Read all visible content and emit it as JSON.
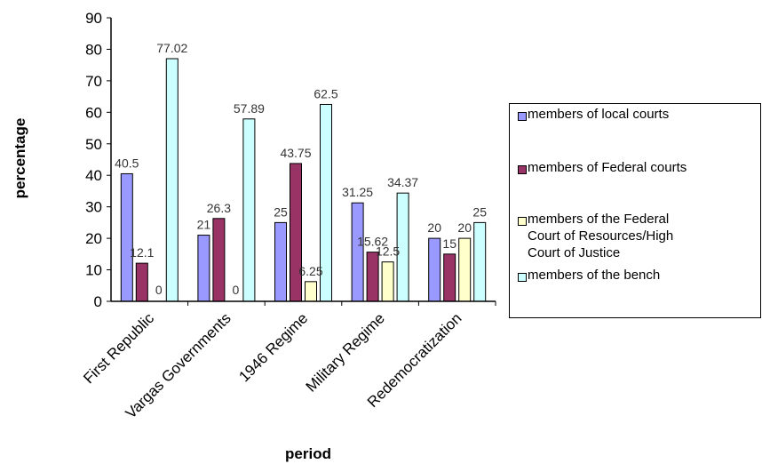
{
  "chart_data": {
    "type": "bar",
    "categories": [
      "First Republic",
      "Vargas Governments",
      "1946 Regime",
      "Military Regime",
      "Redemocratization"
    ],
    "series": [
      {
        "name": "members of local courts",
        "color": "#9999FF",
        "values": [
          40.5,
          21,
          25,
          31.25,
          20
        ],
        "labels": [
          "40.5",
          "21",
          "25",
          "31.25",
          "20"
        ]
      },
      {
        "name": "members of Federal courts",
        "color": "#993366",
        "values": [
          12.1,
          26.3,
          43.75,
          15.62,
          15
        ],
        "labels": [
          "12.1",
          "26.3",
          "43.75",
          "15.62",
          "15"
        ]
      },
      {
        "name": "members of the Federal Court of Resources/High Court of Justice",
        "color": "#FFFFCC",
        "values": [
          0,
          0,
          6.25,
          12.5,
          20
        ],
        "labels": [
          "",
          "",
          "6.25",
          "12.5",
          "20"
        ]
      },
      {
        "name": "members of the bench",
        "color": "#CCFFFF",
        "values": [
          77.02,
          57.89,
          62.5,
          34.37,
          25
        ],
        "labels": [
          "77.02",
          "57.89",
          "62.5",
          "34.37",
          "25"
        ]
      }
    ],
    "extra_labels": [
      {
        "category_index": 0,
        "series_index": 2,
        "text": "0"
      },
      {
        "category_index": 1,
        "series_index": 2,
        "text": "0"
      }
    ],
    "xlabel": "period",
    "ylabel": "percentage",
    "ylim": [
      0,
      90
    ],
    "yticks": [
      0,
      10,
      20,
      30,
      40,
      50,
      60,
      70,
      80,
      90
    ],
    "grid": false,
    "legend_position": "right"
  },
  "legend": {
    "items": [
      {
        "lines": [
          "members of local courts"
        ]
      },
      {
        "lines": [
          "members of Federal courts"
        ]
      },
      {
        "lines": [
          "members of the Federal",
          "Court of Resources/High",
          "Court of Justice"
        ]
      },
      {
        "lines": [
          "members of the bench"
        ]
      }
    ]
  }
}
